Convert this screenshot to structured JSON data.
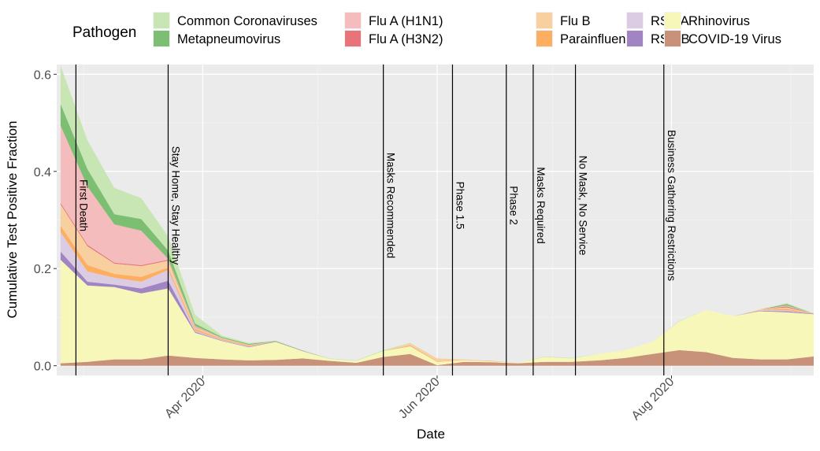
{
  "chart_data": {
    "type": "area",
    "stacked": true,
    "xlabel": "Date",
    "ylabel": "Cumulative Test Positive Fraction",
    "ylim": [
      -0.02,
      0.62
    ],
    "yticks": [
      0.0,
      0.2,
      0.4,
      0.6
    ],
    "ytick_labels": [
      "0.0",
      "0.2",
      "0.4",
      "0.6"
    ],
    "xlim": [
      "2020-02-23",
      "2020-09-07"
    ],
    "xticks": [
      "2020-04-01",
      "2020-06-01",
      "2020-08-01"
    ],
    "xtick_labels": [
      "Apr 2020",
      "Jun 2020",
      "Aug 2020"
    ],
    "grid": true,
    "legend": {
      "title": "Pathogen",
      "placement": "top"
    },
    "x": [
      "2020-02-24",
      "2020-03-02",
      "2020-03-09",
      "2020-03-16",
      "2020-03-23",
      "2020-03-30",
      "2020-04-06",
      "2020-04-13",
      "2020-04-20",
      "2020-04-27",
      "2020-05-04",
      "2020-05-11",
      "2020-05-18",
      "2020-05-25",
      "2020-06-01",
      "2020-06-08",
      "2020-06-15",
      "2020-06-22",
      "2020-06-29",
      "2020-07-06",
      "2020-07-13",
      "2020-07-20",
      "2020-07-27",
      "2020-08-03",
      "2020-08-10",
      "2020-08-17",
      "2020-08-24",
      "2020-08-31",
      "2020-09-07"
    ],
    "series": [
      {
        "name": "COVID-19 Virus",
        "color": "#c8917a",
        "values": [
          0.005,
          0.008,
          0.013,
          0.013,
          0.021,
          0.016,
          0.013,
          0.011,
          0.012,
          0.015,
          0.01,
          0.006,
          0.018,
          0.024,
          0.001,
          0.008,
          0.007,
          0.005,
          0.008,
          0.008,
          0.011,
          0.016,
          0.024,
          0.032,
          0.028,
          0.016,
          0.013,
          0.013,
          0.019
        ]
      },
      {
        "name": "Rhinovirus",
        "color": "#f7f7b9",
        "values": [
          0.213,
          0.157,
          0.149,
          0.136,
          0.138,
          0.052,
          0.038,
          0.027,
          0.037,
          0.015,
          0.004,
          0.004,
          0.012,
          0.016,
          0.007,
          0.003,
          0.002,
          0.001,
          0.01,
          0.007,
          0.013,
          0.016,
          0.025,
          0.059,
          0.087,
          0.086,
          0.099,
          0.097,
          0.087
        ]
      },
      {
        "name": "RSV B",
        "color": "#a085c2",
        "values": [
          0.017,
          0.008,
          0.005,
          0.01,
          0.016,
          0.002,
          0.001,
          0.001,
          0.001,
          0.001,
          0,
          0,
          0,
          0,
          0,
          0,
          0,
          0,
          0,
          0,
          0,
          0,
          0,
          0,
          0,
          0,
          0.001,
          0.002,
          0.001
        ]
      },
      {
        "name": "RSV A",
        "color": "#dbcce3",
        "values": [
          0.04,
          0.021,
          0.014,
          0.014,
          0.022,
          0.002,
          0.001,
          0.001,
          0,
          0,
          0,
          0,
          0,
          0,
          0,
          0,
          0,
          0,
          0,
          0,
          0,
          0,
          0,
          0,
          0,
          0,
          0.001,
          0.002,
          0
        ]
      },
      {
        "name": "Parainfluenza",
        "color": "#fdae61",
        "values": [
          0.013,
          0.013,
          0.008,
          0.01,
          0.005,
          0.004,
          0.002,
          0.002,
          0,
          0,
          0,
          0,
          0,
          0.002,
          0.001,
          0,
          0.001,
          0,
          0,
          0,
          0,
          0,
          0,
          0,
          0,
          0,
          0.001,
          0.003,
          0
        ]
      },
      {
        "name": "Flu B",
        "color": "#f8cf9f",
        "values": [
          0.044,
          0.039,
          0.021,
          0.022,
          0.014,
          0.003,
          0.001,
          0.001,
          0,
          0,
          0,
          0,
          0,
          0.004,
          0.006,
          0.002,
          0,
          0,
          0,
          0,
          0,
          0,
          0,
          0,
          0,
          0,
          0.001,
          0.003,
          0
        ]
      },
      {
        "name": "Flu A (H3N2)",
        "color": "#e8747a",
        "values": [
          0.003,
          0.003,
          0.002,
          0.002,
          0.002,
          0.001,
          0,
          0,
          0,
          0,
          0,
          0,
          0,
          0,
          0,
          0,
          0,
          0,
          0,
          0,
          0,
          0,
          0,
          0,
          0,
          0,
          0,
          0.002,
          0
        ]
      },
      {
        "name": "Flu A (H1N1)",
        "color": "#f4bcbc",
        "values": [
          0.159,
          0.12,
          0.079,
          0.071,
          0.002,
          0.002,
          0.001,
          0,
          0,
          0,
          0,
          0,
          0,
          0,
          0,
          0,
          0,
          0,
          0,
          0,
          0,
          0,
          0,
          0,
          0,
          0,
          0,
          0.002,
          0
        ]
      },
      {
        "name": "Metapneumovirus",
        "color": "#7dbf72",
        "values": [
          0.045,
          0.036,
          0.021,
          0.024,
          0.017,
          0.005,
          0.002,
          0.002,
          0.001,
          0,
          0,
          0,
          0,
          0,
          0,
          0,
          0,
          0,
          0,
          0,
          0,
          0,
          0,
          0,
          0,
          0,
          0,
          0.003,
          0
        ]
      },
      {
        "name": "Common Coronaviruses",
        "color": "#c8e6b3",
        "values": [
          0.079,
          0.059,
          0.054,
          0.043,
          0.029,
          0.018,
          0.003,
          0.002,
          0.001,
          0.001,
          0.001,
          0.001,
          0.002,
          0.001,
          0,
          0,
          0,
          0,
          0.001,
          0.001,
          0,
          0,
          0,
          0.001,
          0,
          0,
          0,
          0.002,
          0.001
        ]
      }
    ],
    "legend_order": [
      "Common Coronaviruses",
      "Metapneumovirus",
      "Flu A (H1N1)",
      "Flu A (H3N2)",
      "Flu B",
      "Parainfluenza",
      "RSV A",
      "RSV B",
      "Rhinovirus",
      "COVID-19 Virus"
    ],
    "annotations": [
      {
        "date": "2020-02-28",
        "label": "First Death"
      },
      {
        "date": "2020-03-23",
        "label": "Stay Home, Stay Healthy"
      },
      {
        "date": "2020-05-18",
        "label": "Masks Recommended"
      },
      {
        "date": "2020-06-05",
        "label": "Phase 1.5"
      },
      {
        "date": "2020-06-19",
        "label": "Phase 2"
      },
      {
        "date": "2020-06-26",
        "label": "Masks Required"
      },
      {
        "date": "2020-07-07",
        "label": "No Mask, No Service"
      },
      {
        "date": "2020-07-30",
        "label": "Business Gathering Restrictions"
      }
    ],
    "annotation_label_y": 0.33
  }
}
